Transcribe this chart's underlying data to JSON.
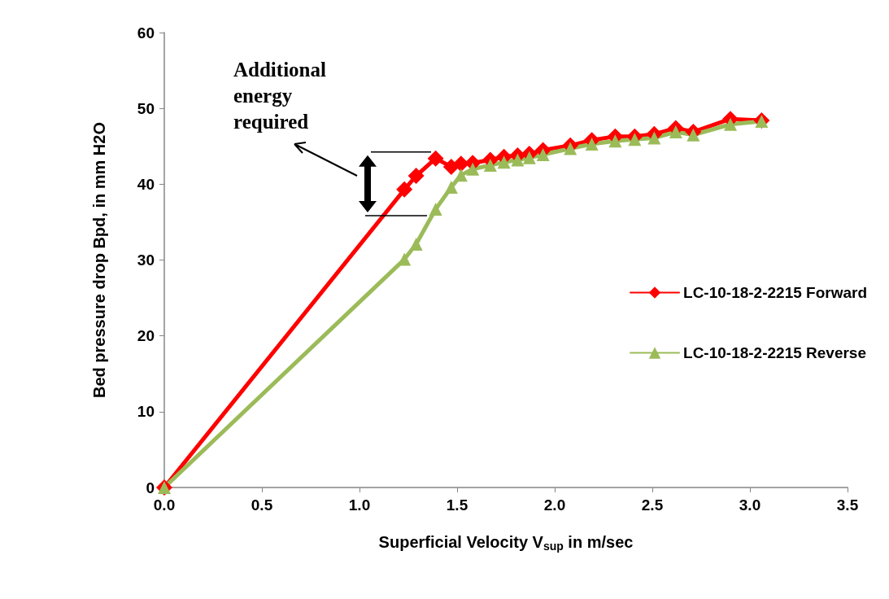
{
  "chart_data": {
    "type": "line",
    "xlabel": "Superficial Velocity V$_{sup}$ in m/sec",
    "ylabel": "Bed pressure drop Bpd, in mm H2O",
    "annotations": [
      "Additional energy required"
    ],
    "x": [
      0,
      1.23,
      1.29,
      1.39,
      1.47,
      1.52,
      1.58,
      1.67,
      1.74,
      1.81,
      1.87,
      1.94,
      2.08,
      2.19,
      2.31,
      2.41,
      2.51,
      2.62,
      2.71,
      2.9,
      3.06
    ],
    "series": [
      {
        "name": "LC-10-18-2-2215 Forward",
        "color": "#ff0000",
        "marker": "diamond",
        "values": [
          0,
          39.3,
          41.1,
          43.4,
          42.3,
          42.7,
          42.8,
          43.2,
          43.6,
          43.8,
          44.0,
          44.5,
          45.1,
          45.8,
          46.3,
          46.3,
          46.6,
          47.4,
          46.9,
          48.6,
          48.4
        ]
      },
      {
        "name": "LC-10-18-2-2215 Reverse",
        "color": "#9bbb59",
        "marker": "triangle",
        "values": [
          0,
          30.1,
          32.1,
          36.7,
          39.6,
          41.2,
          42.0,
          42.5,
          42.9,
          43.2,
          43.5,
          43.9,
          44.7,
          45.3,
          45.7,
          45.9,
          46.1,
          46.9,
          46.5,
          47.9,
          48.3
        ]
      }
    ],
    "xlim": [
      0,
      3.5
    ],
    "xticks": [
      {
        "value": 0,
        "label": "0.0"
      },
      {
        "value": 0.5,
        "label": "0.5"
      },
      {
        "value": 1,
        "label": "1.0"
      },
      {
        "value": 1.5,
        "label": "1.5"
      },
      {
        "value": 2,
        "label": "2.0"
      },
      {
        "value": 2.5,
        "label": "2.5"
      },
      {
        "value": 3,
        "label": "3.0"
      },
      {
        "value": 3.5,
        "label": "3.5"
      }
    ],
    "ylim": [
      0,
      60
    ],
    "yticks": [
      0,
      10,
      20,
      30,
      40,
      50,
      60
    ],
    "grid": false,
    "legend": "right",
    "line_style": "solid"
  }
}
